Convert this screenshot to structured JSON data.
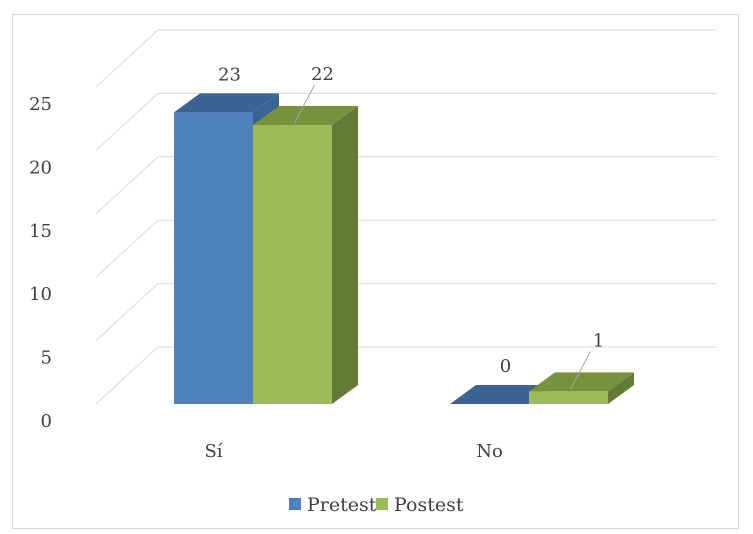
{
  "chart_data": {
    "type": "bar",
    "categories": [
      "Sí",
      "No"
    ],
    "series": [
      {
        "name": "Pretest",
        "values": [
          23,
          0
        ],
        "color": "#4f81bd",
        "color_top": "#3b6393"
      },
      {
        "name": "Postest",
        "values": [
          22,
          1
        ],
        "color": "#9bbb59",
        "color_top": "#76923c",
        "color_side": "#637b36"
      }
    ],
    "ylim": [
      0,
      25
    ],
    "yticks": [
      "0",
      "5",
      "10",
      "15",
      "20",
      "25"
    ],
    "grid": true,
    "legend": "bottom",
    "three_d": true
  }
}
